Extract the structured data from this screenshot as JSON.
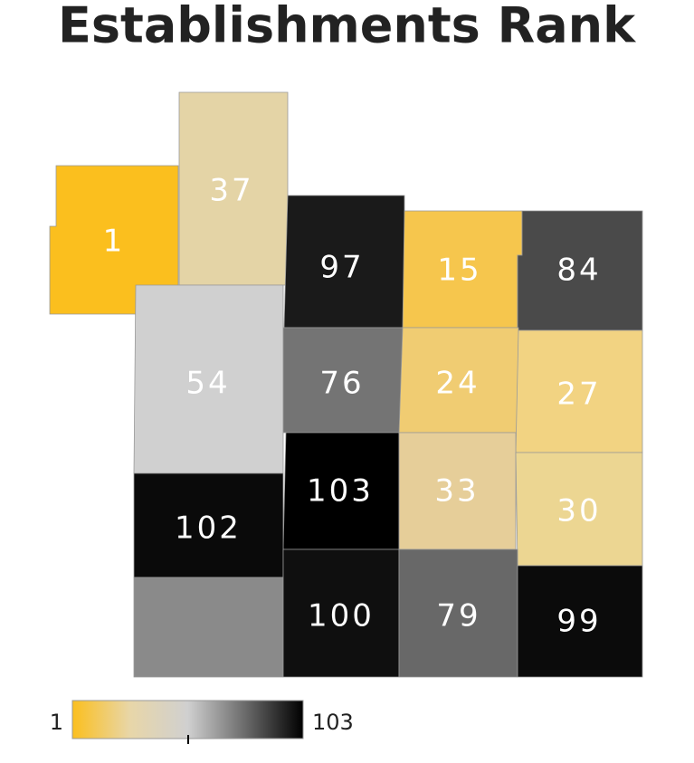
{
  "map_data": {
    "type": "choropleth",
    "title": "Establishments Rank",
    "regions": [
      {
        "value": 1,
        "color": "#fbbf1e"
      },
      {
        "value": 37,
        "color": "#e4d4a6"
      },
      {
        "value": 97,
        "color": "#1a1a1a"
      },
      {
        "value": 15,
        "color": "#f6c64d"
      },
      {
        "value": 84,
        "color": "#4a4a4a"
      },
      {
        "value": 54,
        "color": "#d0d0d0"
      },
      {
        "value": 76,
        "color": "#747474"
      },
      {
        "value": 24,
        "color": "#f0cc72"
      },
      {
        "value": 27,
        "color": "#f2d382"
      },
      {
        "value": 103,
        "color": "#000000"
      },
      {
        "value": 33,
        "color": "#e6ce99"
      },
      {
        "value": 30,
        "color": "#ecd692"
      },
      {
        "value": 102,
        "color": "#0a0a0a"
      },
      {
        "value": null,
        "color": "#8a8a8a"
      },
      {
        "value": 100,
        "color": "#0f0f0f"
      },
      {
        "value": 79,
        "color": "#686868"
      },
      {
        "value": 99,
        "color": "#0b0b0b"
      }
    ],
    "legend": {
      "min": 1,
      "max": 103,
      "colors": [
        "#fbbf1e",
        "#e8d6a8",
        "#d0d0d0",
        "#6a6a6a",
        "#000000"
      ]
    }
  }
}
